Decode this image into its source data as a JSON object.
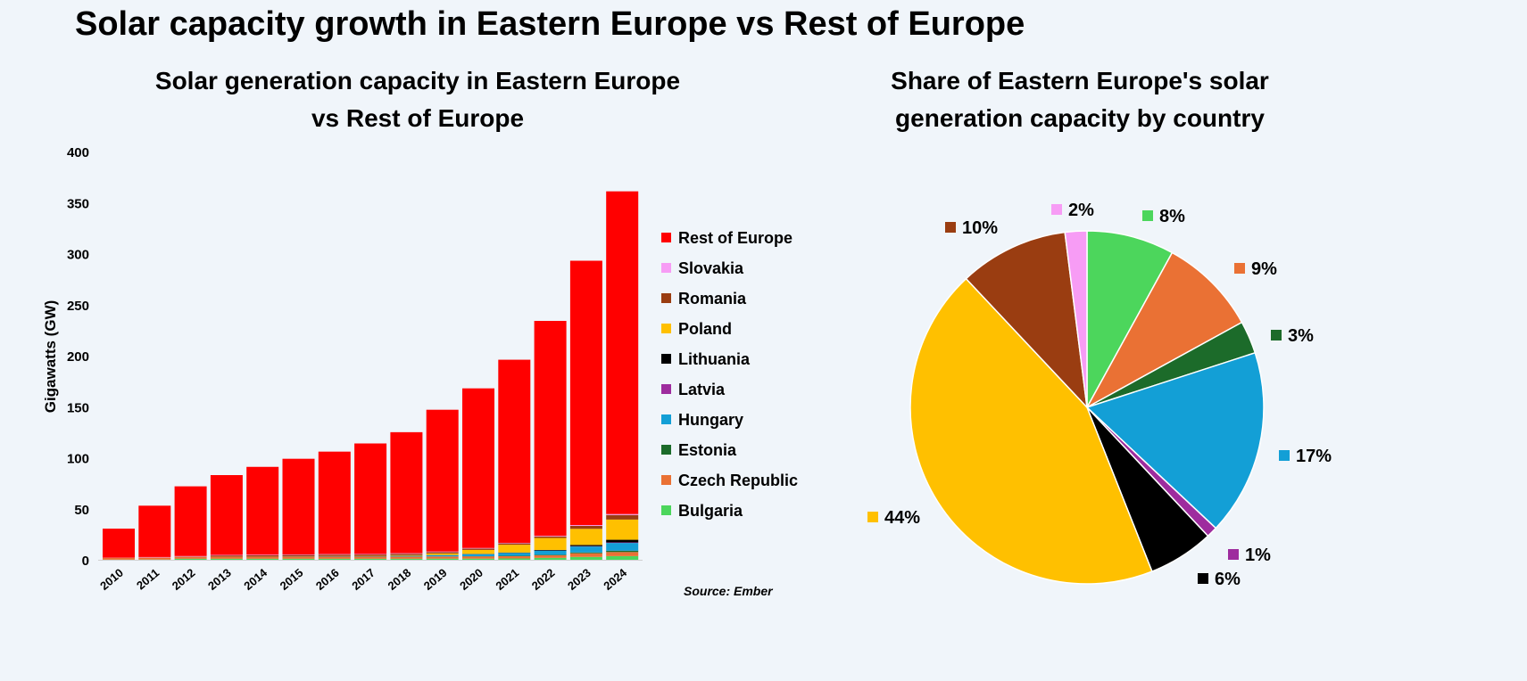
{
  "title": "Solar capacity growth in Eastern Europe vs Rest of Europe",
  "source": "Source: Ember",
  "chart_data": [
    {
      "type": "bar",
      "stacked": true,
      "title_line1": "Solar generation capacity in Eastern Europe",
      "title_line2": "vs Rest of Europe",
      "ylabel": "Gigawatts (GW)",
      "ylim": [
        0,
        400
      ],
      "yticks": [
        0,
        50,
        100,
        150,
        200,
        250,
        300,
        350,
        400
      ],
      "grid": false,
      "legend_position": "right",
      "categories": [
        "2010",
        "2011",
        "2012",
        "2013",
        "2014",
        "2015",
        "2016",
        "2017",
        "2018",
        "2019",
        "2020",
        "2021",
        "2022",
        "2023",
        "2024"
      ],
      "series": [
        {
          "name": "Bulgaria",
          "color": "#4cd65c",
          "values": [
            0.1,
            0.2,
            1.0,
            1.0,
            1.0,
            1.0,
            1.0,
            1.0,
            1.0,
            1.1,
            1.1,
            1.3,
            1.9,
            2.8,
            3.6
          ]
        },
        {
          "name": "Czech Republic",
          "color": "#ea7134",
          "values": [
            1.9,
            2.0,
            2.1,
            2.1,
            2.1,
            2.1,
            2.1,
            2.1,
            2.1,
            2.1,
            2.2,
            2.2,
            2.5,
            3.6,
            4.0
          ]
        },
        {
          "name": "Estonia",
          "color": "#1c6b2a",
          "values": [
            0,
            0,
            0,
            0,
            0,
            0,
            0,
            0,
            0.03,
            0.1,
            0.2,
            0.4,
            0.5,
            0.8,
            1.3
          ]
        },
        {
          "name": "Hungary",
          "color": "#139fd6",
          "values": [
            0,
            0,
            0,
            0,
            0.04,
            0.2,
            0.3,
            0.3,
            0.7,
            1.3,
            2.1,
            2.9,
            4.1,
            5.8,
            7.6
          ]
        },
        {
          "name": "Latvia",
          "color": "#9e2c9e",
          "values": [
            0,
            0,
            0,
            0,
            0,
            0,
            0,
            0,
            0,
            0,
            0.01,
            0.01,
            0.05,
            0.3,
            0.5
          ]
        },
        {
          "name": "Lithuania",
          "color": "#000000",
          "values": [
            0,
            0,
            0.01,
            0.07,
            0.07,
            0.07,
            0.07,
            0.07,
            0.08,
            0.1,
            0.15,
            0.3,
            0.6,
            1.2,
            2.6
          ]
        },
        {
          "name": "Poland",
          "color": "#ffc000",
          "values": [
            0,
            0,
            0,
            0,
            0.03,
            0.1,
            0.2,
            0.3,
            0.6,
            1.5,
            3.9,
            7.6,
            11.7,
            15.8,
            19.8
          ]
        },
        {
          "name": "Romania",
          "color": "#9a3d11",
          "values": [
            0,
            0,
            0.05,
            1.1,
            1.2,
            1.3,
            1.4,
            1.4,
            1.4,
            1.4,
            1.4,
            1.4,
            1.5,
            2.9,
            4.5
          ]
        },
        {
          "name": "Slovakia",
          "color": "#f79cf5",
          "values": [
            0.1,
            0.5,
            0.5,
            0.5,
            0.5,
            0.5,
            0.5,
            0.5,
            0.5,
            0.5,
            0.5,
            0.5,
            0.6,
            0.8,
            0.9
          ]
        },
        {
          "name": "Rest of Europe",
          "color": "#ff0000",
          "values": [
            28.4,
            50.3,
            68.3,
            78.2,
            86.1,
            93.7,
            100.4,
            108.3,
            118.6,
            138.9,
            156.4,
            179.4,
            210.6,
            259,
            316.2
          ]
        }
      ],
      "legend_order": [
        "Rest of Europe",
        "Slovakia",
        "Romania",
        "Poland",
        "Lithuania",
        "Latvia",
        "Hungary",
        "Estonia",
        "Czech Republic",
        "Bulgaria"
      ]
    },
    {
      "type": "pie",
      "title_line1": "Share of Eastern Europe's solar",
      "title_line2": "generation capacity  by country",
      "slices": [
        {
          "name": "Bulgaria",
          "value": 8,
          "label": "8%",
          "color": "#4cd65c"
        },
        {
          "name": "Czech Republic",
          "value": 9,
          "label": "9%",
          "color": "#ea7134"
        },
        {
          "name": "Estonia",
          "value": 3,
          "label": "3%",
          "color": "#1c6b2a"
        },
        {
          "name": "Hungary",
          "value": 17,
          "label": "17%",
          "color": "#139fd6"
        },
        {
          "name": "Latvia",
          "value": 1,
          "label": "1%",
          "color": "#9e2c9e"
        },
        {
          "name": "Lithuania",
          "value": 6,
          "label": "6%",
          "color": "#000000"
        },
        {
          "name": "Poland",
          "value": 44,
          "label": "44%",
          "color": "#ffc000"
        },
        {
          "name": "Romania",
          "value": 10,
          "label": "10%",
          "color": "#9a3d11"
        },
        {
          "name": "Slovakia",
          "value": 2,
          "label": "2%",
          "color": "#f79cf5"
        }
      ]
    }
  ]
}
